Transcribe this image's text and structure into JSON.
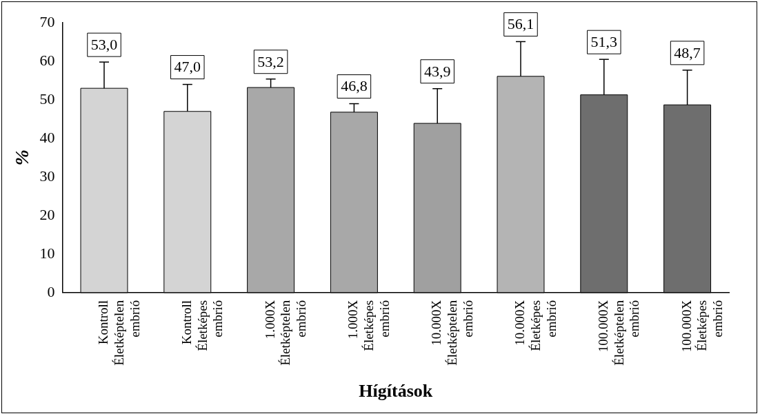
{
  "chart_data": {
    "type": "bar",
    "xlabel": "Hígítások",
    "ylabel": "%",
    "categories": [
      "Kontroll Életképtelen embrió",
      "Kontroll Életképes embrió",
      "1.000X Életképtelen embrió",
      "1.000X Életképes embrió",
      "10.000X Életképtelen embrió",
      "10.000X Életképes embrió",
      "100.000X Életképtelen embrió",
      "100.000X Életképes embrió"
    ],
    "values": [
      53.0,
      47.0,
      53.2,
      46.8,
      43.9,
      56.1,
      51.3,
      48.7
    ],
    "value_labels": [
      "53,0",
      "47,0",
      "53,2",
      "46,8",
      "43,9",
      "56,1",
      "51,3",
      "48,7"
    ],
    "errors": [
      [
        53.0,
        59.8
      ],
      [
        47.0,
        54.0
      ],
      [
        53.2,
        55.4
      ],
      [
        46.8,
        49.0
      ],
      [
        43.9,
        52.9
      ],
      [
        56.1,
        65.1
      ],
      [
        51.3,
        60.5
      ],
      [
        48.7,
        57.7
      ]
    ],
    "colors": [
      "#d4d4d4",
      "#d4d4d4",
      "#a8a8a8",
      "#a8a8a8",
      "#a0a0a0",
      "#b4b4b4",
      "#6e6e6e",
      "#6e6e6e"
    ],
    "ylim": [
      0,
      70
    ],
    "yticks": [
      0,
      10,
      20,
      30,
      40,
      50,
      60,
      70
    ],
    "grid": false,
    "legend": false
  }
}
